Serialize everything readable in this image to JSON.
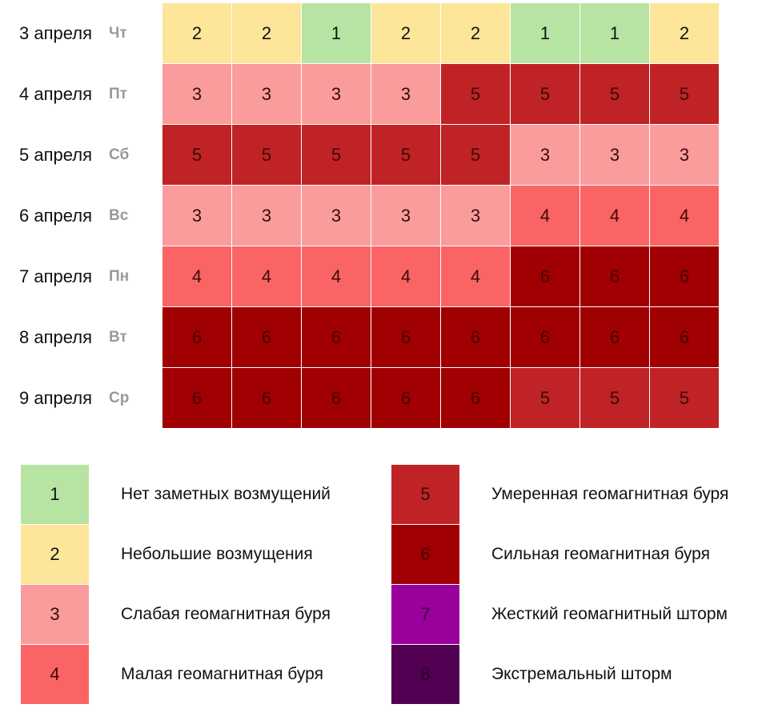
{
  "chart_data": {
    "type": "heatmap",
    "title": "",
    "rows": [
      {
        "date": "3 апреля",
        "dow": "Чт",
        "values": [
          2,
          2,
          1,
          2,
          2,
          1,
          1,
          2
        ]
      },
      {
        "date": "4 апреля",
        "dow": "Пт",
        "values": [
          3,
          3,
          3,
          3,
          5,
          5,
          5,
          5
        ]
      },
      {
        "date": "5 апреля",
        "dow": "Сб",
        "values": [
          5,
          5,
          5,
          5,
          5,
          3,
          3,
          3
        ]
      },
      {
        "date": "6 апреля",
        "dow": "Вс",
        "values": [
          3,
          3,
          3,
          3,
          3,
          4,
          4,
          4
        ]
      },
      {
        "date": "7 апреля",
        "dow": "Пн",
        "values": [
          4,
          4,
          4,
          4,
          4,
          6,
          6,
          6
        ]
      },
      {
        "date": "8 апреля",
        "dow": "Вт",
        "values": [
          6,
          6,
          6,
          6,
          6,
          6,
          6,
          6
        ]
      },
      {
        "date": "9 апреля",
        "dow": "Ср",
        "values": [
          6,
          6,
          6,
          6,
          6,
          5,
          5,
          5
        ]
      }
    ],
    "columns": 8,
    "legend": [
      {
        "level": "1",
        "label": "Нет заметных возмущений",
        "color": "#b7e4a2",
        "text_color": "#111111"
      },
      {
        "level": "2",
        "label": "Небольшие возмущения",
        "color": "#fde59a",
        "text_color": "#111111"
      },
      {
        "level": "3",
        "label": "Слабая геомагнитная буря",
        "color": "#fa9c9c",
        "text_color": "#3a0a0a"
      },
      {
        "level": "4",
        "label": "Малая геомагнитная буря",
        "color": "#fb6464",
        "text_color": "#3a0a0a"
      },
      {
        "level": "5",
        "label": "Умеренная геомагнитная буря",
        "color": "#c02325",
        "text_color": "#3a0a0a"
      },
      {
        "level": "6",
        "label": "Сильная геомагнитная буря",
        "color": "#a00002",
        "text_color": "#4a0000"
      },
      {
        "level": "7",
        "label": "Жесткий геомагнитный шторм",
        "color": "#9a009c",
        "text_color": "#3a0040"
      },
      {
        "level": "8",
        "label": "Экстремальный шторм",
        "color": "#520052",
        "text_color": "#2a002a"
      }
    ]
  }
}
